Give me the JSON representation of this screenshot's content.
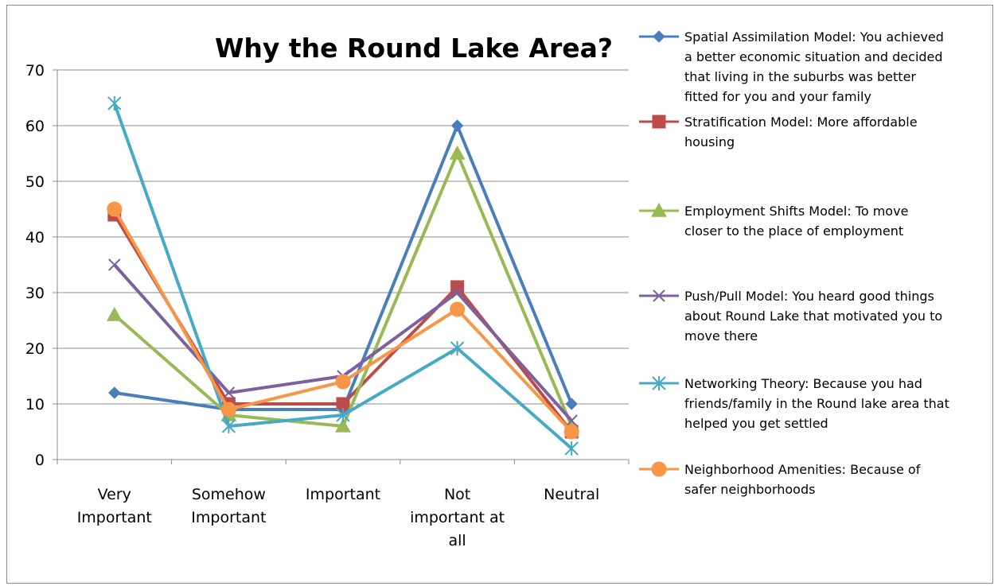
{
  "chart_data": {
    "type": "line",
    "title": "Why the Round Lake Area?",
    "xlabel": "",
    "ylabel": "",
    "ylim": [
      0,
      70
    ],
    "yticks": [
      0,
      10,
      20,
      30,
      40,
      50,
      60,
      70
    ],
    "grid": true,
    "legend_position": "right",
    "categories": [
      [
        "Very",
        "Important"
      ],
      [
        "Somehow",
        "Important"
      ],
      [
        "Important"
      ],
      [
        "Not",
        "important at",
        "all"
      ],
      [
        "Neutral"
      ]
    ],
    "series": [
      {
        "name": "Spatial Assimilation Model: You achieved a better economic situation and decided that living in the suburbs was better fitted for you and your family",
        "legend_lines": [
          "Spatial Assimilation Model: You achieved",
          "a better economic situation and decided",
          "that living in the suburbs was better",
          "fitted for you and your family"
        ],
        "color": "#4a7ebb",
        "marker": "diamond",
        "values": [
          12,
          9,
          9,
          60,
          10
        ]
      },
      {
        "name": "Stratification Model: More affordable housing",
        "legend_lines": [
          "Stratification Model: More affordable",
          "housing"
        ],
        "color": "#be4b48",
        "marker": "square",
        "values": [
          44,
          10,
          10,
          31,
          5
        ]
      },
      {
        "name": "Employment Shifts Model: To move closer to the place of employment",
        "legend_lines": [
          "Employment Shifts Model: To move",
          "closer to the place of employment"
        ],
        "color": "#98b954",
        "marker": "triangle",
        "values": [
          26,
          8,
          6,
          55,
          6
        ]
      },
      {
        "name": "Push/Pull Model: You heard good things about Round Lake that motivated you to move there",
        "legend_lines": [
          "Push/Pull Model: You heard good things",
          "about Round Lake that motivated you to",
          "move there"
        ],
        "color": "#7d60a0",
        "marker": "x",
        "values": [
          35,
          12,
          15,
          30,
          7
        ]
      },
      {
        "name": "Networking Theory: Because you had friends/family in the Round lake area that helped you get settled",
        "legend_lines": [
          "Networking Theory: Because you had",
          "friends/family in the Round lake area that",
          "helped you get settled"
        ],
        "color": "#46aac5",
        "marker": "star",
        "values": [
          64,
          6,
          8,
          20,
          2
        ]
      },
      {
        "name": "Neighborhood Amenities: Because of safer neighborhoods",
        "legend_lines": [
          "Neighborhood Amenities: Because of",
          "safer neighborhoods"
        ],
        "color": "#f79646",
        "marker": "circle",
        "values": [
          45,
          9,
          14,
          27,
          5
        ]
      }
    ]
  }
}
